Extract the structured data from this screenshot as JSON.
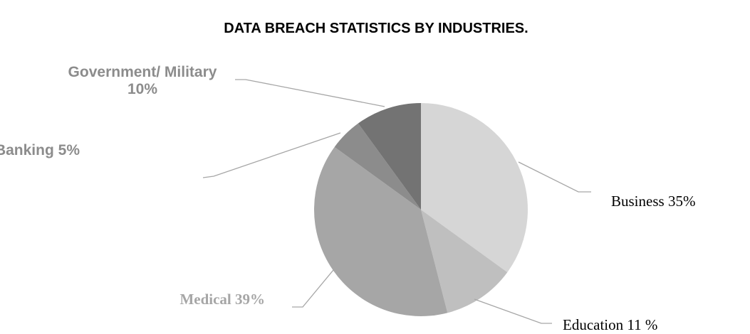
{
  "chart_data": {
    "type": "pie",
    "title": "DATA BREACH STATISTICS BY INDUSTRIES.",
    "categories": [
      "Business",
      "Education",
      "Medical",
      "Banking",
      "Government/ Military"
    ],
    "values": [
      35,
      11,
      39,
      5,
      10
    ],
    "value_labels": [
      "35%",
      "11 %",
      "39%",
      "5%",
      "10%"
    ],
    "colors": [
      "#d6d6d6",
      "#bfbfbf",
      "#a6a6a6",
      "#8c8c8c",
      "#737373"
    ]
  }
}
